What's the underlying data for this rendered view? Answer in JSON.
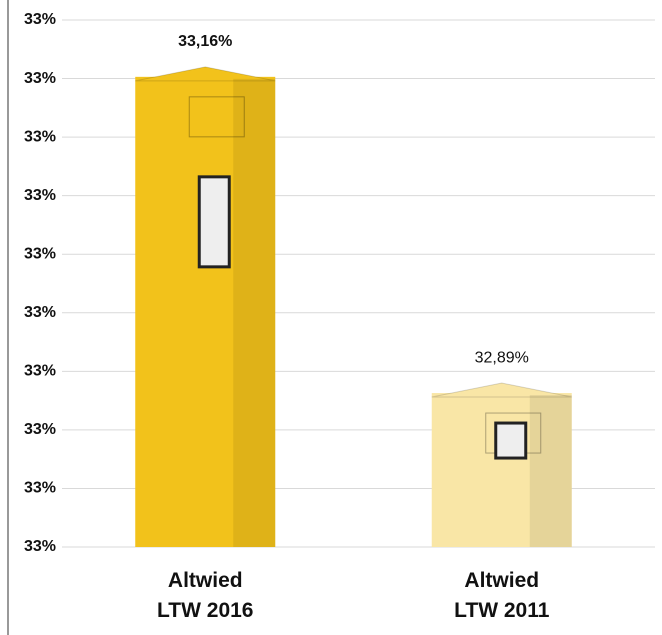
{
  "chart_data": {
    "type": "bar",
    "categories": [
      "Altwied LTW 2016",
      "Altwied LTW 2011"
    ],
    "values": [
      33.16,
      32.89
    ],
    "value_labels": [
      "33,16%",
      "32,89%"
    ],
    "colors": [
      "#f2c21b",
      "#f9e6a6"
    ],
    "ylim": [
      32.75,
      33.2
    ],
    "yticks": [
      {
        "value": 32.75,
        "label": "33%"
      },
      {
        "value": 32.8,
        "label": "33%"
      },
      {
        "value": 32.85,
        "label": "33%"
      },
      {
        "value": 32.9,
        "label": "33%"
      },
      {
        "value": 32.95,
        "label": "33%"
      },
      {
        "value": 33.0,
        "label": "33%"
      },
      {
        "value": 33.05,
        "label": "33%"
      },
      {
        "value": 33.1,
        "label": "33%"
      },
      {
        "value": 33.15,
        "label": "33%"
      },
      {
        "value": 33.2,
        "label": "33%"
      }
    ],
    "grid": true
  }
}
